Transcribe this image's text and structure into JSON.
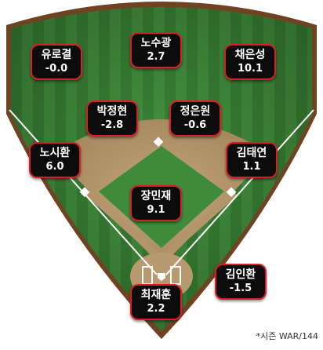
{
  "players": [
    {
      "name": "유로결",
      "war": "-0.0"
    },
    {
      "name": "노수광",
      "war": "2.7"
    },
    {
      "name": "채은성",
      "war": "10.1"
    },
    {
      "name": "박정현",
      "war": "-2.8"
    },
    {
      "name": "정은원",
      "war": "-0.6"
    },
    {
      "name": "노시환",
      "war": "6.0"
    },
    {
      "name": "김태연",
      "war": "1.1"
    },
    {
      "name": "장민재",
      "war": "9.1"
    },
    {
      "name": "김인환",
      "war": "-1.5"
    },
    {
      "name": "최재훈",
      "war": "2.2"
    }
  ],
  "footnote": "*시즌 WAR/144",
  "colors": {
    "card_border": "#d8202a",
    "card_bg": "#0c0c0c",
    "grass": "#3e8a3a",
    "infield_dirt": "#b3956c",
    "warning_track": "#7a4a26"
  }
}
